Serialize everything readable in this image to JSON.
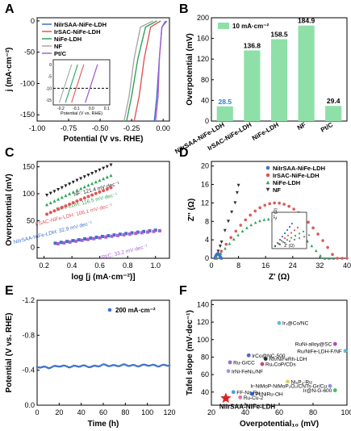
{
  "chart_data": [
    {
      "panel": "A",
      "type": "line",
      "xlabel": "Potential (V vs. RHE)",
      "ylabel": "j (mA·cm⁻²)",
      "xlim": [
        -1.0,
        0.05
      ],
      "ylim": [
        -160,
        5
      ],
      "xticks": [
        "-1.00",
        "-0.75",
        "-0.50",
        "-0.25",
        "0.00"
      ],
      "yticks": [
        "-150",
        "-100",
        "-50",
        "0"
      ],
      "series": [
        {
          "name": "NiIr_SAA-NiFe-LDH",
          "color": "#3e71c9",
          "x": [
            0.02,
            -0.01,
            -0.03,
            -0.05,
            -0.07
          ],
          "y": [
            0,
            -10,
            -60,
            -120,
            -160
          ]
        },
        {
          "name": "Ir_SAC-NiFe-LDH",
          "color": "#e05757",
          "x": [
            -0.02,
            -0.1,
            -0.15,
            -0.19,
            -0.23
          ],
          "y": [
            0,
            -10,
            -60,
            -120,
            -160
          ]
        },
        {
          "name": "NiFe-LDH",
          "color": "#2fa35b",
          "x": [
            -0.05,
            -0.14,
            -0.2,
            -0.25,
            -0.29
          ],
          "y": [
            0,
            -10,
            -60,
            -120,
            -160
          ]
        },
        {
          "name": "NF",
          "color": "#a8a8a8",
          "x": [
            -0.08,
            -0.18,
            -0.23,
            -0.27,
            -0.31
          ],
          "y": [
            0,
            -10,
            -60,
            -120,
            -160
          ]
        },
        {
          "name": "Pt/C",
          "color": "#a85fd0",
          "x": [
            0.03,
            -0.01,
            -0.03,
            -0.04,
            -0.06
          ],
          "y": [
            0,
            -10,
            -60,
            -120,
            -160
          ]
        }
      ],
      "inset": {
        "xlabel": "Potential (V vs. RHE)",
        "xticks": [
          "-0.2",
          "-0.1",
          "0.0",
          "0.1"
        ],
        "yticks": [
          "0",
          "-5",
          "-10",
          "-15"
        ],
        "dashed_y": -10
      }
    },
    {
      "panel": "B",
      "type": "bar",
      "legend": "10 mA·cm⁻²",
      "ylabel": "Overpotential (mV)",
      "ylim": [
        0,
        200
      ],
      "yticks": [
        "0",
        "40",
        "80",
        "120",
        "160",
        "200"
      ],
      "categories": [
        "NiIr_SAA-NiFe-LDH",
        "Ir_SAC-NiFe-LDH",
        "NiFe-LDH",
        "NF",
        "Pt/C"
      ],
      "values": [
        28.5,
        136.8,
        158.5,
        184.9,
        29.4
      ],
      "value_labels": [
        "28.5",
        "136.8",
        "158.5",
        "184.9",
        "29.4"
      ],
      "bar_color": "#8ee0a8"
    },
    {
      "panel": "C",
      "type": "scatter",
      "xlabel": "log [j (mA·cm⁻²)]",
      "ylabel": "Overpotential (mV)",
      "xlim": [
        0.15,
        1.1
      ],
      "ylim": [
        -20,
        160
      ],
      "xticks": [
        "0.2",
        "0.4",
        "0.6",
        "0.8",
        "1.0"
      ],
      "yticks": [
        "0",
        "50",
        "100",
        "150"
      ],
      "series": [
        {
          "name": "NF",
          "annotation": "NF: 121.4 mV·dec⁻¹",
          "color": "#222222",
          "marker": "triangle-down",
          "x0": 0.22,
          "x1": 0.68,
          "y0": 97,
          "y1": 153
        },
        {
          "name": "NiFe-LDH",
          "annotation": "NiFe-LDH: 116.5 mV·dec⁻¹",
          "color": "#2fa35b",
          "marker": "triangle-up",
          "x0": 0.22,
          "x1": 0.68,
          "y0": 80,
          "y1": 134
        },
        {
          "name": "Ir_SAC-NiFe-LDH",
          "annotation": "Ir_SAC-NiFe-LDH: 106.1 mV·dec⁻¹",
          "color": "#e05757",
          "marker": "circle",
          "x0": 0.22,
          "x1": 0.68,
          "y0": 62,
          "y1": 111
        },
        {
          "name": "NiIr_SAA-NiFe-LDH",
          "annotation": "NiIr_SAA-NiFe-LDH: 32.9 mV·dec⁻¹",
          "color": "#3e71c9",
          "marker": "square",
          "x0": 0.28,
          "x1": 1.0,
          "y0": 8,
          "y1": 32
        },
        {
          "name": "Pt/C",
          "annotation": "Pt/C: 33.2 mV·dec⁻¹",
          "color": "#a85fd0",
          "marker": "square",
          "x0": 0.3,
          "x1": 1.03,
          "y0": 7,
          "y1": 31
        }
      ]
    },
    {
      "panel": "D",
      "type": "scatter",
      "xlabel": "Z' (Ω)",
      "ylabel": "Z'' (Ω)",
      "xlim": [
        0,
        40
      ],
      "ylim": [
        0,
        21
      ],
      "xticks": [
        "0",
        "8",
        "16",
        "24",
        "32",
        "40"
      ],
      "yticks": [
        "0",
        "4",
        "8",
        "12",
        "16",
        "20"
      ],
      "series": [
        {
          "name": "NiIr_SAA-NiFe-LDH",
          "color": "#3e71c9",
          "marker": "circle",
          "arc": [
            1.0,
            3.0,
            1.0
          ]
        },
        {
          "name": "Ir_SAC-NiFe-LDH",
          "color": "#e05757",
          "marker": "circle",
          "arc": [
            1.5,
            40,
            12.0
          ]
        },
        {
          "name": "NiFe-LDH",
          "color": "#2fa35b",
          "marker": "triangle-up",
          "arc": [
            1.5,
            36,
            8.5
          ]
        },
        {
          "name": "NF",
          "color": "#333333",
          "marker": "triangle-down",
          "points": [
            [
              2,
              1.5
            ],
            [
              3,
              3.5
            ],
            [
              4,
              6
            ],
            [
              5,
              8
            ],
            [
              6,
              10
            ],
            [
              7,
              12
            ],
            [
              7.6,
              14.2
            ],
            [
              8,
              15.8
            ],
            [
              2.6,
              2.6
            ]
          ]
        }
      ],
      "inset": {
        "ylabel": "-Z'' (Ω)",
        "xlabel": "Z' (Ω)"
      }
    },
    {
      "panel": "E",
      "type": "line",
      "legend": "200 mA·cm⁻²",
      "xlabel": "Time (h)",
      "ylabel": "Potential (V vs. RHE)",
      "xlim": [
        0,
        120
      ],
      "ylim": [
        -1.2,
        0
      ],
      "xticks": [
        "0",
        "20",
        "40",
        "60",
        "80",
        "100",
        "120"
      ],
      "yticks": [
        "-1.2",
        "-0.8",
        "-0.4",
        "0.0"
      ],
      "color": "#3e71c9",
      "x": [
        0,
        10,
        20,
        30,
        40,
        50,
        60,
        70,
        80,
        90,
        100,
        110,
        120
      ],
      "y": [
        -0.44,
        -0.43,
        -0.45,
        -0.44,
        -0.45,
        -0.44,
        -0.46,
        -0.45,
        -0.46,
        -0.45,
        -0.46,
        -0.45,
        -0.46
      ]
    },
    {
      "panel": "F",
      "type": "scatter",
      "xlabel": "Overpotential₁₀ (mV)",
      "ylabel": "Tafel slope (mV·dec⁻¹)",
      "xlim": [
        20,
        100
      ],
      "ylim": [
        25,
        145
      ],
      "xticks": [
        "20",
        "40",
        "60",
        "80",
        "100"
      ],
      "yticks": [
        "40",
        "60",
        "80",
        "100",
        "120",
        "140"
      ],
      "points": [
        {
          "label": "Ir₁@Co/NC",
          "x": 60,
          "y": 119,
          "color": "#5fb8e0"
        },
        {
          "label": "RuNi-alloy@SC",
          "x": 93,
          "y": 95,
          "color": "#b04ac0"
        },
        {
          "label": "Ru/NiFe-LDH-F/NF",
          "x": 99,
          "y": 87,
          "color": "#5fb8e0"
        },
        {
          "label": "IrCo@NC-500",
          "x": 42,
          "y": 82,
          "color": "#4a6ad0"
        },
        {
          "label": "Rh/NiFeRh-LDH",
          "x": 52,
          "y": 78,
          "color": "#2a2a2a"
        },
        {
          "label": "Ru-G/CC",
          "x": 31,
          "y": 74,
          "color": "#9a6ad0"
        },
        {
          "label": "Ru₁CoP/CDs",
          "x": 50,
          "y": 72,
          "color": "#c04a6a"
        },
        {
          "label": "IrNi-FeNi₃/NF",
          "x": 30,
          "y": 64,
          "color": "#9a9ae0"
        },
        {
          "label": "Ni₅P₄-Ru",
          "x": 65,
          "y": 52,
          "color": "#d8d060"
        },
        {
          "label": "FF-Na-Ru",
          "x": 33,
          "y": 40,
          "color": "#4aa0d8"
        },
        {
          "label": "Pt/NiRu-OH",
          "x": 44,
          "y": 38,
          "color": "#2a5ad0"
        },
        {
          "label": "Ru-Cu-2",
          "x": 37,
          "y": 34,
          "color": "#f06a9a"
        },
        {
          "label": "Ir-NiMoP-NiMoP₂O₂/CNTs-Gr/Cu",
          "x": 90,
          "y": 47,
          "color": "#9090e0"
        },
        {
          "label": "Ir@N-G-600",
          "x": 93,
          "y": 42,
          "color": "#40c060"
        },
        {
          "label": "NiIr_SAA-NiFe-LDH",
          "x": 28.5,
          "y": 32.9,
          "color": "#e02020",
          "marker": "star"
        }
      ]
    }
  ],
  "panels": {
    "A": "A",
    "B": "B",
    "C": "C",
    "D": "D",
    "E": "E",
    "F": "F"
  }
}
